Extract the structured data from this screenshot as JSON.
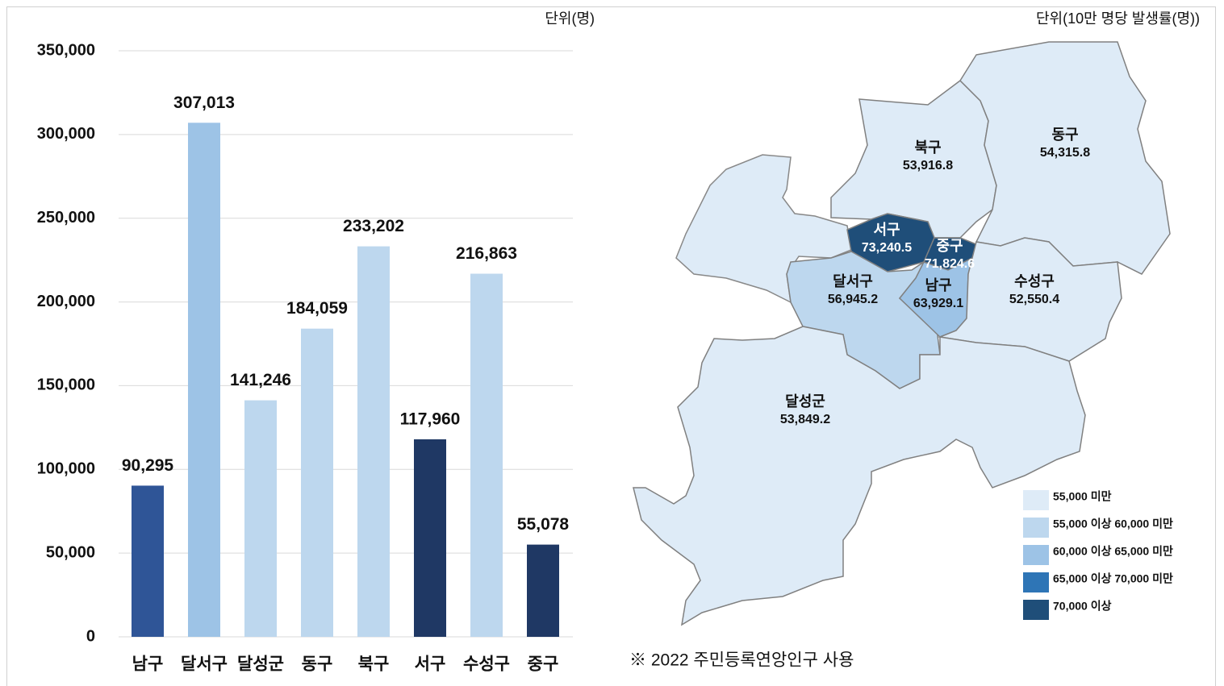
{
  "chart_data": [
    {
      "type": "bar",
      "unit": "단위(명)",
      "categories": [
        "남구",
        "달서구",
        "달성군",
        "동구",
        "북구",
        "서구",
        "수성구",
        "중구"
      ],
      "values": [
        90295,
        307013,
        141246,
        184059,
        233202,
        117960,
        216863,
        55078
      ],
      "value_labels": [
        "90,295",
        "307,013",
        "141,246",
        "184,059",
        "233,202",
        "117,960",
        "216,863",
        "55,078"
      ],
      "colors": [
        "#2f5597",
        "#9dc3e6",
        "#bdd7ee",
        "#bdd7ee",
        "#bdd7ee",
        "#1f3864",
        "#bdd7ee",
        "#1f3864"
      ],
      "ylim": [
        0,
        350000
      ],
      "yticks": [
        0,
        {
          "value": 50000,
          "label": "50,000"
        },
        {
          "value": 100000,
          "label": "100,000"
        },
        {
          "value": 150000,
          "label": "150,000"
        },
        {
          "value": 200000,
          "label": "200,000"
        },
        {
          "value": 250000,
          "label": "250,000"
        },
        {
          "value": 300000,
          "label": "300,000"
        },
        {
          "value": 350000,
          "label": "350,000"
        }
      ],
      "grid": true
    },
    {
      "type": "map",
      "unit": "단위(10만 명당 발생률(명))",
      "categories": [
        "북구",
        "동구",
        "서구",
        "중구",
        "달서구",
        "남구",
        "수성구",
        "달성군"
      ],
      "values": [
        53916.8,
        54315.8,
        73240.5,
        71824.6,
        56945.2,
        63929.1,
        52550.4,
        53849.2
      ],
      "value_labels": [
        "53,916.8",
        "54,315.8",
        "73,240.5",
        "71,824.6",
        "56,945.2",
        "63,929.1",
        "52,550.4",
        "53,849.2"
      ],
      "colors": [
        "#deebf7",
        "#deebf7",
        "#1f4e79",
        "#1f4e79",
        "#bdd7ee",
        "#9dc3e6",
        "#deebf7",
        "#deebf7"
      ],
      "legend": [
        {
          "label": "55,000 미만",
          "color": "#deebf7"
        },
        {
          "label": "55,000 이상 60,000 미만",
          "color": "#bdd7ee"
        },
        {
          "label": "60,000 이상 65,000 미만",
          "color": "#9dc3e6"
        },
        {
          "label": "65,000 이상 70,000 미만",
          "color": "#2e75b6"
        },
        {
          "label": "70,000 이상",
          "color": "#1f4e79"
        }
      ],
      "note": "※ 2022 주민등록연앙인구 사용"
    }
  ]
}
